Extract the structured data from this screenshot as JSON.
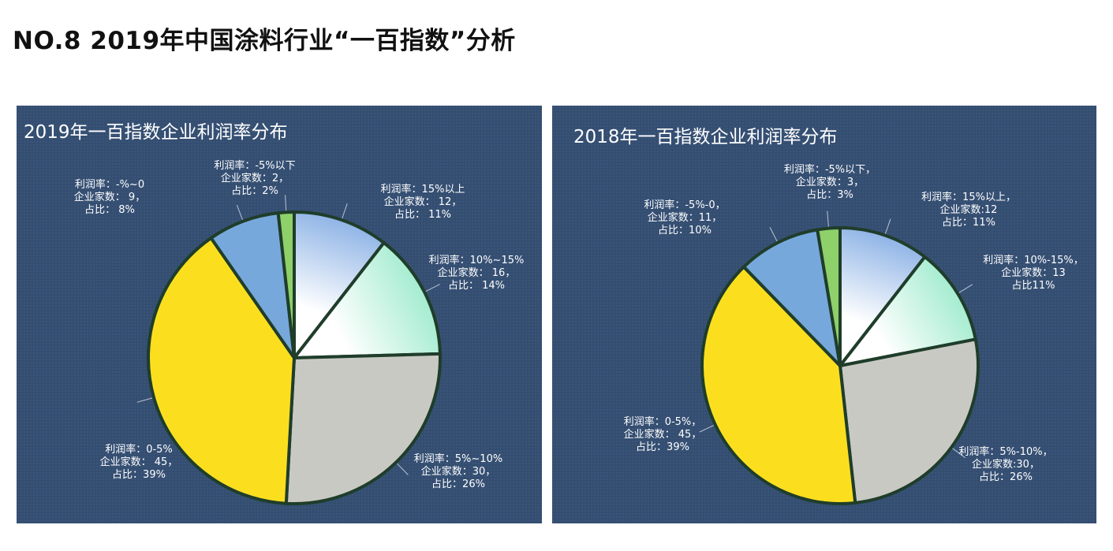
{
  "page": {
    "title": "NO.8  2019年中国涂料行业“一百指数”分析"
  },
  "chart_data": [
    {
      "type": "pie",
      "title": "2019年一百指数企业利润率分布",
      "slices": [
        {
          "category": "15%以上",
          "value": 12,
          "percent": "11%",
          "color": "#8fb4e6",
          "label_lines": [
            "利润率：15%以上",
            "企业家数： 12，",
            "占比： 11%"
          ]
        },
        {
          "category": "10%~15%",
          "value": 16,
          "percent": "14%",
          "color": "#a4ecd0",
          "label_lines": [
            "利润率：10%~15%",
            "企业家数： 16，",
            "占比： 14%"
          ]
        },
        {
          "category": "5%~10%",
          "value": 30,
          "percent": "26%",
          "color": "#c9c9c3",
          "label_lines": [
            "利润率：5%~10%",
            "企业家数：30，",
            "占比：26%"
          ]
        },
        {
          "category": "0-5%",
          "value": 45,
          "percent": "39%",
          "color": "#fbdf1f",
          "label_lines": [
            "利润率：0-5%",
            "企业家数： 45，",
            "占比：39%"
          ]
        },
        {
          "category": "-%~0",
          "value": 9,
          "percent": "8%",
          "color": "#77a8dc",
          "label_lines": [
            "利润率：-%~0",
            "企业家数： 9，",
            "占比： 8%"
          ]
        },
        {
          "category": "-5%以下",
          "value": 2,
          "percent": "2%",
          "color": "#8ed06a",
          "label_lines": [
            "利润率：-5%以下",
            "企业家数：2，",
            "占比：2%"
          ]
        }
      ]
    },
    {
      "type": "pie",
      "title": "2018年一百指数企业利润率分布",
      "slices": [
        {
          "category": "15%以上",
          "value": 12,
          "percent": "11%",
          "color": "#8fb4e6",
          "label_lines": [
            "利润率：15%以上，",
            "企业家数:12",
            "占比：11%"
          ]
        },
        {
          "category": "10%-15%",
          "value": 13,
          "percent": "11%",
          "color": "#a4ecd0",
          "label_lines": [
            "利润率：10%-15%，",
            "企业家数：13",
            "占比11%"
          ]
        },
        {
          "category": "5%-10%",
          "value": 30,
          "percent": "26%",
          "color": "#c9c9c3",
          "label_lines": [
            "利润率：5%-10%，",
            "企业家数:30，",
            "占比：26%"
          ]
        },
        {
          "category": "0-5%",
          "value": 45,
          "percent": "39%",
          "color": "#fbdf1f",
          "label_lines": [
            "利润率：0-5%，",
            "企业家数： 45，",
            "占比：39%"
          ]
        },
        {
          "category": "-5%-0",
          "value": 11,
          "percent": "10%",
          "color": "#77a8dc",
          "label_lines": [
            "利润率：-5%-0，",
            "企业家数：11，",
            "占比：10%"
          ]
        },
        {
          "category": "-5%以下",
          "value": 3,
          "percent": "3%",
          "color": "#8ed06a",
          "label_lines": [
            "利润率：-5%以下，",
            "企业家数：3，",
            "占比：3%"
          ]
        }
      ]
    }
  ]
}
